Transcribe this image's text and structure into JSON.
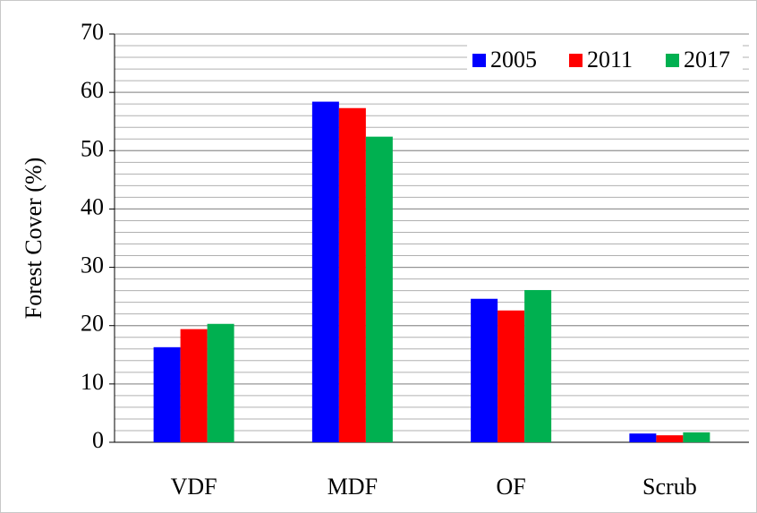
{
  "chart_data": {
    "type": "bar",
    "y_label": "Forest Cover (%)",
    "categories": [
      "VDF",
      "MDF",
      "OF",
      "Scrub"
    ],
    "series": [
      {
        "name": "2005",
        "color": "#0000ff",
        "values": [
          16.3,
          58.4,
          24.6,
          1.5
        ]
      },
      {
        "name": "2011",
        "color": "#ff0000",
        "values": [
          19.4,
          57.3,
          22.6,
          1.2
        ]
      },
      {
        "name": "2017",
        "color": "#00b050",
        "values": [
          20.3,
          52.4,
          26.1,
          1.7
        ]
      }
    ],
    "ylim": [
      0,
      70
    ],
    "yticks": [
      0,
      10,
      20,
      30,
      40,
      50,
      60,
      70
    ],
    "grid": true,
    "minor_grid_step": 2,
    "legend": "upper right"
  }
}
